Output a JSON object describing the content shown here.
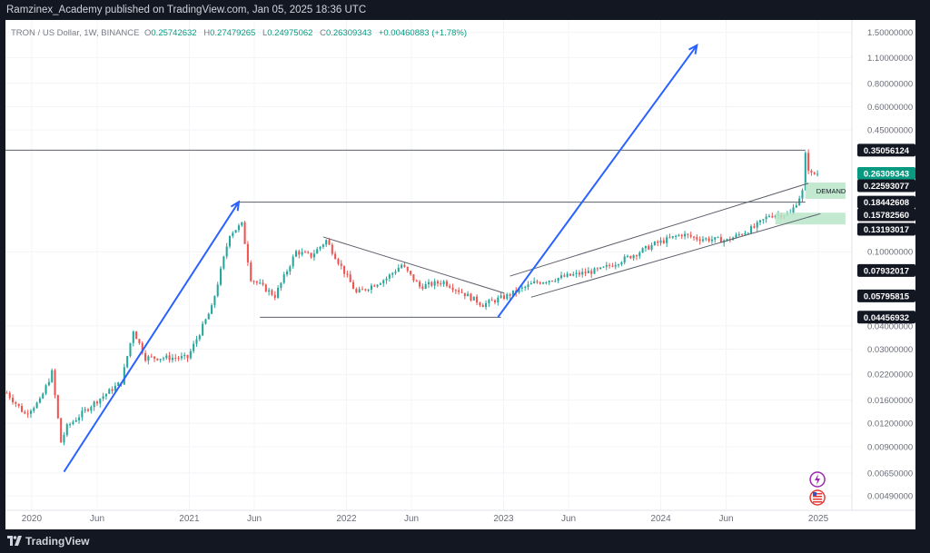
{
  "header": {
    "published_text": "Ramzinex_Academy published on TradingView.com, Jan 05, 2025 18:36 UTC"
  },
  "footer": {
    "brand": "TradingView",
    "brand_icon": "tradingview-logo-icon"
  },
  "colors": {
    "up": "#26a69a",
    "down": "#ef5350",
    "pattern": "#2962ff",
    "demand": "#b9e6c9",
    "label_bg": "#131722",
    "price_bg": "#089981"
  },
  "chart_data": {
    "type": "candlestick",
    "symbol_line": {
      "name": "TRON / US Dollar, 1W, BINANCE",
      "O_label": "O",
      "O": "0.25742632",
      "H_label": "H",
      "H": "0.27479265",
      "L_label": "L",
      "L": "0.24975062",
      "C_label": "C",
      "C": "0.26309343",
      "change": "+0.00460883 (+1.78%)"
    },
    "y_scale": "log",
    "y_range": [
      0.0041,
      1.75
    ],
    "x_range": [
      "2019-11-01",
      "2025-03-20"
    ],
    "y_ticks": [
      "1.50000000",
      "1.10000000",
      "0.80000000",
      "0.60000000",
      "0.45000000",
      "0.10000000",
      "0.04000000",
      "0.03000000",
      "0.02200000",
      "0.01600000",
      "0.01200000",
      "0.00900000",
      "0.00650000",
      "0.00490000"
    ],
    "x_ticks": [
      {
        "label": "2020",
        "date": "2020-01-01"
      },
      {
        "label": "Jun",
        "date": "2020-06-01"
      },
      {
        "label": "2021",
        "date": "2021-01-01"
      },
      {
        "label": "Jun",
        "date": "2021-06-01"
      },
      {
        "label": "2022",
        "date": "2022-01-01"
      },
      {
        "label": "Jun",
        "date": "2022-06-01"
      },
      {
        "label": "2023",
        "date": "2023-01-01"
      },
      {
        "label": "Jun",
        "date": "2023-06-01"
      },
      {
        "label": "2024",
        "date": "2024-01-01"
      },
      {
        "label": "Jun",
        "date": "2024-06-01"
      },
      {
        "label": "2025",
        "date": "2025-01-01"
      }
    ],
    "price_labels": [
      {
        "value": "0.35056124",
        "price": 0.35056124,
        "style": "dark"
      },
      {
        "value": "0.26309343",
        "price": 0.26309343,
        "style": "current"
      },
      {
        "value": "0.22593077",
        "price": 0.22593077,
        "style": "dark"
      },
      {
        "value": "0.18442608",
        "price": 0.18442608,
        "style": "dark"
      },
      {
        "value": "0.15782560",
        "price": 0.1578256,
        "style": "dark"
      },
      {
        "value": "0.13193017",
        "price": 0.13193017,
        "style": "dark"
      },
      {
        "value": "0.07932017",
        "price": 0.07932017,
        "style": "dark"
      },
      {
        "value": "0.05795815",
        "price": 0.05795815,
        "style": "dark"
      },
      {
        "value": "0.04456932",
        "price": 0.04456932,
        "style": "dark"
      }
    ],
    "demand_label": "DEMAND",
    "anchors": [
      [
        "2019-11-04",
        0.0175
      ],
      [
        "2019-12-16",
        0.0135
      ],
      [
        "2020-01-20",
        0.0158
      ],
      [
        "2020-02-17",
        0.0225
      ],
      [
        "2020-03-09",
        0.0095
      ],
      [
        "2020-03-23",
        0.0115
      ],
      [
        "2020-05-18",
        0.015
      ],
      [
        "2020-07-27",
        0.02
      ],
      [
        "2020-08-24",
        0.038
      ],
      [
        "2020-09-21",
        0.027
      ],
      [
        "2020-12-28",
        0.027
      ],
      [
        "2021-02-22",
        0.05
      ],
      [
        "2021-04-05",
        0.125
      ],
      [
        "2021-05-03",
        0.14
      ],
      [
        "2021-05-24",
        0.072
      ],
      [
        "2021-07-19",
        0.058
      ],
      [
        "2021-09-06",
        0.1
      ],
      [
        "2021-10-11",
        0.095
      ],
      [
        "2021-11-15",
        0.115
      ],
      [
        "2022-01-24",
        0.06
      ],
      [
        "2022-04-04",
        0.072
      ],
      [
        "2022-05-09",
        0.085
      ],
      [
        "2022-06-20",
        0.065
      ],
      [
        "2022-08-15",
        0.069
      ],
      [
        "2022-11-14",
        0.052
      ],
      [
        "2023-01-09",
        0.058
      ],
      [
        "2023-03-13",
        0.068
      ],
      [
        "2023-05-29",
        0.074
      ],
      [
        "2023-08-14",
        0.08
      ],
      [
        "2023-11-06",
        0.098
      ],
      [
        "2023-12-18",
        0.11
      ],
      [
        "2024-02-19",
        0.124
      ],
      [
        "2024-03-25",
        0.118
      ],
      [
        "2024-06-03",
        0.115
      ],
      [
        "2024-08-05",
        0.135
      ],
      [
        "2024-09-09",
        0.157
      ],
      [
        "2024-10-28",
        0.16
      ],
      [
        "2024-11-25",
        0.21
      ],
      [
        "2024-12-02",
        0.33
      ],
      [
        "2024-12-09",
        0.28
      ],
      [
        "2024-12-16",
        0.26
      ],
      [
        "2024-12-30",
        0.2631
      ]
    ],
    "annotations": {
      "horizontal_lines": [
        {
          "price": 0.35056124,
          "from": "2019-11-01",
          "to": "2024-12-02"
        },
        {
          "price": 0.18442608,
          "from": "2021-04-26",
          "to": "2024-12-02"
        }
      ],
      "triangle": {
        "upper": [
          [
            "2021-11-08",
            0.12
          ],
          [
            "2023-01-02",
            0.06
          ]
        ],
        "lower": [
          [
            "2021-06-14",
            0.0445
          ],
          [
            "2022-12-26",
            0.0445
          ]
        ]
      },
      "arrows": [
        {
          "from": [
            "2020-03-16",
            0.0066
          ],
          "to": [
            "2021-04-26",
            0.185
          ]
        },
        {
          "from": [
            "2022-12-19",
            0.0446
          ],
          "to": [
            "2024-03-25",
            1.28
          ]
        }
      ],
      "channel": {
        "upper": [
          [
            "2023-01-16",
            0.074
          ],
          [
            "2024-12-09",
            0.233
          ]
        ],
        "lower": [
          [
            "2023-03-06",
            0.057
          ],
          [
            "2025-01-06",
            0.16
          ]
        ]
      },
      "demand_zones": [
        {
          "from": "2024-12-02",
          "to": "2025-03-05",
          "low": 0.192,
          "high": 0.235
        },
        {
          "from": "2024-09-23",
          "to": "2025-03-05",
          "low": 0.14,
          "high": 0.162
        }
      ]
    }
  }
}
